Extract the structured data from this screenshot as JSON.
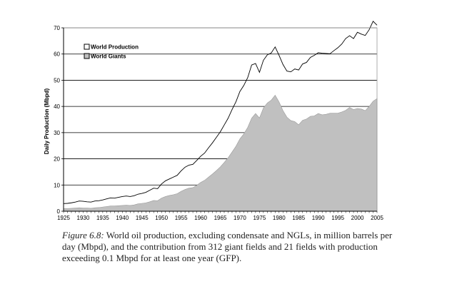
{
  "chart_data": {
    "type": "area",
    "title": "",
    "xlabel": "",
    "ylabel": "Daily Production (Mbpd)",
    "xlim": [
      1925,
      2005
    ],
    "ylim": [
      0,
      70
    ],
    "yticks": [
      0,
      10,
      20,
      30,
      40,
      50,
      60,
      70
    ],
    "xticks": [
      1925,
      1930,
      1935,
      1940,
      1945,
      1950,
      1955,
      1960,
      1965,
      1970,
      1975,
      1980,
      1985,
      1990,
      1995,
      2000,
      2005
    ],
    "grid": "horizontal",
    "legend": "top-left",
    "x": [
      1925,
      1926,
      1927,
      1928,
      1929,
      1930,
      1931,
      1932,
      1933,
      1934,
      1935,
      1936,
      1937,
      1938,
      1939,
      1940,
      1941,
      1942,
      1943,
      1944,
      1945,
      1946,
      1947,
      1948,
      1949,
      1950,
      1951,
      1952,
      1953,
      1954,
      1955,
      1956,
      1957,
      1958,
      1959,
      1960,
      1961,
      1962,
      1963,
      1964,
      1965,
      1966,
      1967,
      1968,
      1969,
      1970,
      1971,
      1972,
      1973,
      1974,
      1975,
      1976,
      1977,
      1978,
      1979,
      1980,
      1981,
      1982,
      1983,
      1984,
      1985,
      1986,
      1987,
      1988,
      1989,
      1990,
      1991,
      1992,
      1993,
      1994,
      1995,
      1996,
      1997,
      1998,
      1999,
      2000,
      2001,
      2002,
      2003,
      2004,
      2005
    ],
    "series": [
      {
        "name": "World Production",
        "style": "outline",
        "values": [
          2.9,
          3.0,
          3.2,
          3.5,
          3.9,
          3.8,
          3.6,
          3.5,
          3.9,
          4.0,
          4.3,
          4.7,
          5.1,
          5.0,
          5.3,
          5.6,
          5.8,
          5.6,
          5.9,
          6.5,
          6.8,
          7.2,
          8.0,
          8.8,
          8.6,
          10.4,
          11.6,
          12.3,
          13.0,
          13.7,
          15.4,
          16.8,
          17.6,
          17.9,
          19.4,
          21.0,
          22.2,
          24.2,
          26.1,
          28.2,
          30.3,
          32.9,
          35.5,
          38.8,
          41.8,
          45.7,
          48.0,
          51.0,
          55.8,
          56.4,
          53.0,
          57.6,
          59.7,
          60.4,
          62.7,
          59.5,
          56.0,
          53.5,
          53.2,
          54.3,
          53.9,
          56.2,
          56.8,
          58.7,
          59.5,
          60.5,
          60.3,
          60.2,
          60.1,
          61.3,
          62.4,
          63.8,
          65.9,
          67.0,
          65.9,
          68.3,
          67.6,
          67.1,
          69.3,
          72.5,
          71.0
        ]
      },
      {
        "name": "World Giants",
        "style": "fill",
        "color": "#c0c0c0",
        "values": [
          1.0,
          1.0,
          1.1,
          1.2,
          1.3,
          1.2,
          1.2,
          1.1,
          1.3,
          1.4,
          1.6,
          1.8,
          2.0,
          2.0,
          2.1,
          2.2,
          2.3,
          2.2,
          2.4,
          2.8,
          3.0,
          3.2,
          3.6,
          4.1,
          4.0,
          5.0,
          5.6,
          6.0,
          6.3,
          6.7,
          7.6,
          8.3,
          8.8,
          9.0,
          9.9,
          11.0,
          11.8,
          13.0,
          14.2,
          15.5,
          16.9,
          18.6,
          20.4,
          22.6,
          24.8,
          27.6,
          29.5,
          32.0,
          35.5,
          37.3,
          35.6,
          39.4,
          41.3,
          42.4,
          44.3,
          41.7,
          38.4,
          35.9,
          34.6,
          34.2,
          33.0,
          34.7,
          35.2,
          36.2,
          36.4,
          37.3,
          36.8,
          37.0,
          37.4,
          37.4,
          37.4,
          37.9,
          38.5,
          39.6,
          38.8,
          39.2,
          39.0,
          38.4,
          40.0,
          42.0,
          43.0
        ]
      }
    ]
  },
  "caption": {
    "label": "Figure 6.8:",
    "text": " World oil production, excluding condensate and NGLs, in million barrels per day (Mbpd), and the contribution from 312 giant fields and 21 fields with production exceeding 0.1 Mbpd for at least one year (GFP)."
  },
  "colors": {
    "area_fill": "#c0c0c0",
    "line": "#000000",
    "grid": "#000000"
  }
}
